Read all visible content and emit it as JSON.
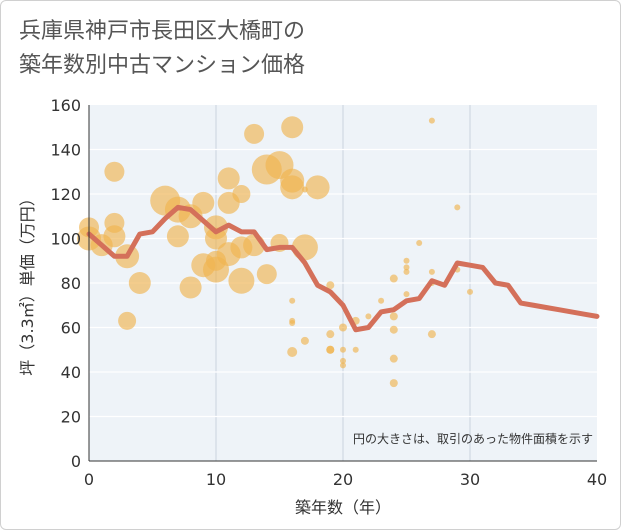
{
  "chart_data": {
    "type": "scatter",
    "title": "兵庫県神戸市長田区大橋町の\n築年数別中古マンション価格",
    "xlabel": "築年数（年）",
    "ylabel": "坪（3.3㎡）単価（万円）",
    "xlim": [
      0,
      40
    ],
    "ylim": [
      0,
      160
    ],
    "xticks": [
      0,
      10,
      20,
      30,
      40
    ],
    "yticks": [
      0,
      20,
      40,
      60,
      80,
      100,
      120,
      140,
      160
    ],
    "grid": true,
    "annotation": "円の大きさは、取引のあった物件面積を示す",
    "colors": {
      "bubble": "#f0b450",
      "line": "#d4705a",
      "plot_bg": "#eef3f8",
      "grid": "#ffffff"
    },
    "bubbles": [
      {
        "x": 0,
        "y": 105,
        "s": 10
      },
      {
        "x": 0,
        "y": 100,
        "s": 12
      },
      {
        "x": 1,
        "y": 97,
        "s": 11
      },
      {
        "x": 2,
        "y": 130,
        "s": 10
      },
      {
        "x": 2,
        "y": 107,
        "s": 10
      },
      {
        "x": 2,
        "y": 101,
        "s": 11
      },
      {
        "x": 3,
        "y": 92,
        "s": 12
      },
      {
        "x": 3,
        "y": 63,
        "s": 9
      },
      {
        "x": 4,
        "y": 80,
        "s": 11
      },
      {
        "x": 6,
        "y": 117,
        "s": 15
      },
      {
        "x": 7,
        "y": 113,
        "s": 13
      },
      {
        "x": 7,
        "y": 101,
        "s": 11
      },
      {
        "x": 8,
        "y": 110,
        "s": 12
      },
      {
        "x": 8,
        "y": 78,
        "s": 11
      },
      {
        "x": 9,
        "y": 116,
        "s": 11
      },
      {
        "x": 9,
        "y": 88,
        "s": 12
      },
      {
        "x": 10,
        "y": 105,
        "s": 12
      },
      {
        "x": 10,
        "y": 100,
        "s": 11
      },
      {
        "x": 10,
        "y": 86,
        "s": 13
      },
      {
        "x": 10,
        "y": 90,
        "s": 10
      },
      {
        "x": 11,
        "y": 127,
        "s": 11
      },
      {
        "x": 11,
        "y": 116,
        "s": 11
      },
      {
        "x": 11,
        "y": 93,
        "s": 12
      },
      {
        "x": 12,
        "y": 120,
        "s": 9
      },
      {
        "x": 12,
        "y": 96,
        "s": 11
      },
      {
        "x": 12,
        "y": 81,
        "s": 13
      },
      {
        "x": 13,
        "y": 147,
        "s": 10
      },
      {
        "x": 13,
        "y": 97,
        "s": 11
      },
      {
        "x": 14,
        "y": 131,
        "s": 15
      },
      {
        "x": 14,
        "y": 84,
        "s": 10
      },
      {
        "x": 15,
        "y": 133,
        "s": 14
      },
      {
        "x": 15,
        "y": 98,
        "s": 9
      },
      {
        "x": 16,
        "y": 150,
        "s": 11
      },
      {
        "x": 16,
        "y": 126,
        "s": 12
      },
      {
        "x": 16,
        "y": 123,
        "s": 12
      },
      {
        "x": 16,
        "y": 72,
        "s": 3
      },
      {
        "x": 16,
        "y": 63,
        "s": 3
      },
      {
        "x": 16,
        "y": 62,
        "s": 3
      },
      {
        "x": 16,
        "y": 49,
        "s": 5
      },
      {
        "x": 17,
        "y": 122,
        "s": 3
      },
      {
        "x": 17,
        "y": 96,
        "s": 13
      },
      {
        "x": 17,
        "y": 54,
        "s": 4
      },
      {
        "x": 18,
        "y": 123,
        "s": 12
      },
      {
        "x": 19,
        "y": 79,
        "s": 4
      },
      {
        "x": 19,
        "y": 57,
        "s": 4
      },
      {
        "x": 19,
        "y": 50,
        "s": 4
      },
      {
        "x": 19,
        "y": 50,
        "s": 4
      },
      {
        "x": 20,
        "y": 60,
        "s": 4
      },
      {
        "x": 20,
        "y": 50,
        "s": 3
      },
      {
        "x": 20,
        "y": 45,
        "s": 3
      },
      {
        "x": 20,
        "y": 43,
        "s": 3
      },
      {
        "x": 21,
        "y": 63,
        "s": 4
      },
      {
        "x": 21,
        "y": 50,
        "s": 3
      },
      {
        "x": 22,
        "y": 65,
        "s": 3
      },
      {
        "x": 23,
        "y": 72,
        "s": 3
      },
      {
        "x": 24,
        "y": 82,
        "s": 4
      },
      {
        "x": 24,
        "y": 65,
        "s": 4
      },
      {
        "x": 24,
        "y": 59,
        "s": 4
      },
      {
        "x": 24,
        "y": 46,
        "s": 4
      },
      {
        "x": 24,
        "y": 35,
        "s": 4
      },
      {
        "x": 25,
        "y": 90,
        "s": 3
      },
      {
        "x": 25,
        "y": 87,
        "s": 3
      },
      {
        "x": 25,
        "y": 85,
        "s": 3
      },
      {
        "x": 25,
        "y": 75,
        "s": 3
      },
      {
        "x": 26,
        "y": 98,
        "s": 3
      },
      {
        "x": 27,
        "y": 153,
        "s": 3
      },
      {
        "x": 27,
        "y": 85,
        "s": 3
      },
      {
        "x": 27,
        "y": 80,
        "s": 3
      },
      {
        "x": 27,
        "y": 57,
        "s": 4
      },
      {
        "x": 29,
        "y": 114,
        "s": 3
      },
      {
        "x": 29,
        "y": 86,
        "s": 3
      },
      {
        "x": 30,
        "y": 76,
        "s": 3
      }
    ],
    "series": [
      {
        "x": [
          0,
          1,
          2,
          3,
          4,
          5,
          6,
          7,
          8,
          9,
          10,
          11,
          12,
          13,
          14,
          15,
          16,
          17,
          18,
          19,
          20,
          21,
          22,
          23,
          24,
          25,
          26,
          27,
          28,
          29,
          30,
          31,
          32,
          33,
          34,
          35,
          36,
          37,
          38,
          39,
          40
        ],
        "values": [
          102,
          97,
          92,
          92,
          102,
          103,
          109,
          114,
          113,
          108,
          103,
          106,
          103,
          103,
          95,
          96,
          96,
          89,
          79,
          76,
          70,
          59,
          60,
          67,
          68,
          72,
          73,
          81,
          79,
          89,
          88,
          87,
          80,
          79,
          71,
          70,
          69,
          68,
          67,
          66,
          65
        ]
      }
    ]
  }
}
